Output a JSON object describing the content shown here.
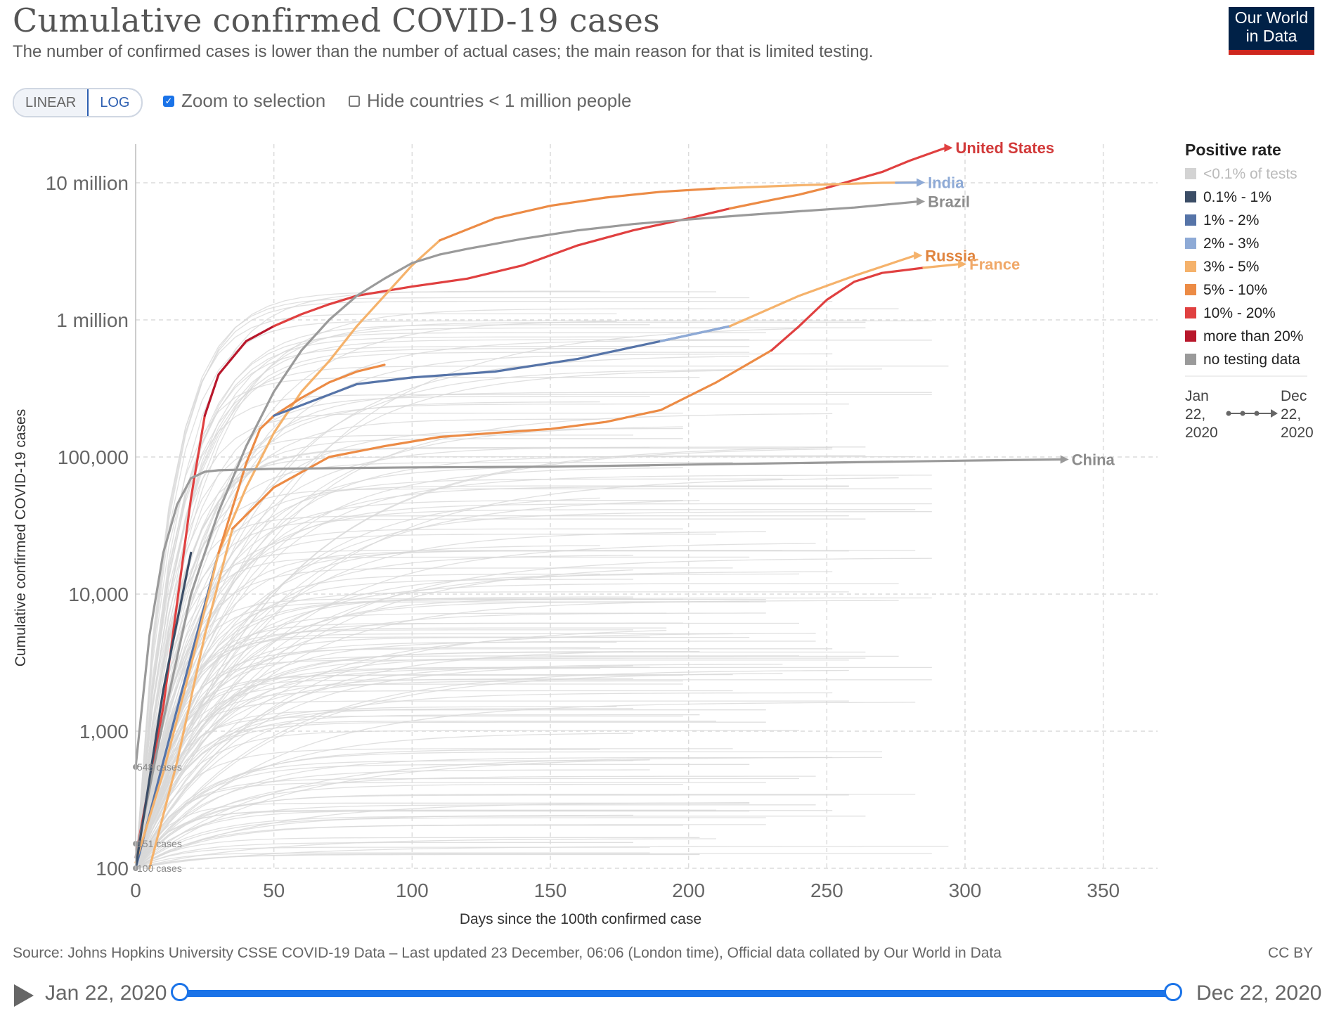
{
  "header": {
    "title": "Cumulative confirmed COVID-19 cases",
    "subtitle": "The number of confirmed cases is lower than the number of actual cases; the main reason for that is limited testing.",
    "logo_line1": "Our World",
    "logo_line2": "in Data"
  },
  "controls": {
    "linear_label": "LINEAR",
    "log_label": "LOG",
    "active_scale": "LOG",
    "zoom_label": "Zoom to selection",
    "zoom_checked": true,
    "hide_label": "Hide countries < 1 million people",
    "hide_checked": false
  },
  "footer": {
    "source": "Source: Johns Hopkins University CSSE COVID-19 Data – Last updated 23 December, 06:06 (London time), Official data collated by Our World in Data",
    "license": "CC BY"
  },
  "timeline": {
    "start": "Jan 22, 2020",
    "end": "Dec 22, 2020"
  },
  "chart_data": {
    "type": "line",
    "title": "Cumulative confirmed COVID-19 cases",
    "xlabel": "Days since the 100th confirmed case",
    "ylabel": "Cumulative confirmed COVID-19 cases",
    "scale": "log",
    "grid": true,
    "xlim": [
      0,
      370
    ],
    "ylim": [
      100,
      20000000
    ],
    "x_ticks": [
      0,
      50,
      100,
      150,
      200,
      250,
      300,
      350
    ],
    "x_tick_labels": [
      "0",
      "50",
      "100",
      "150",
      "200",
      "250",
      "300",
      "350"
    ],
    "y_ticks": [
      100,
      1000,
      10000,
      100000,
      1000000,
      10000000
    ],
    "y_tick_labels": [
      "100",
      "1,000",
      "10,000",
      "100,000",
      "1 million",
      "10 million"
    ],
    "start_annotations": [
      {
        "label": "548 cases",
        "y": 548
      },
      {
        "label": "151 cases",
        "y": 151
      },
      {
        "label": "100 cases",
        "y": 100
      }
    ],
    "legend": {
      "title": "Positive rate",
      "placement": "right",
      "items": [
        {
          "label": "<0.1% of tests",
          "color": "#d3d3d3"
        },
        {
          "label": "0.1% - 1%",
          "color": "#3b4d66"
        },
        {
          "label": "1% - 2%",
          "color": "#5674a8"
        },
        {
          "label": "2% - 3%",
          "color": "#8eaad6"
        },
        {
          "label": "3% - 5%",
          "color": "#f5b26b"
        },
        {
          "label": "5% - 10%",
          "color": "#ec8b45"
        },
        {
          "label": "10% - 20%",
          "color": "#e04040"
        },
        {
          "label": "more than 20%",
          "color": "#b8172b"
        },
        {
          "label": "no testing data",
          "color": "#9a9a9a"
        }
      ],
      "range_start_label": [
        "Jan",
        "22,",
        "2020"
      ],
      "range_end_label": [
        "Dec",
        "22,",
        "2020"
      ]
    },
    "series": [
      {
        "name": "United States",
        "label_color": "#d23a3a",
        "segments": [
          {
            "color": "#e04040",
            "x": [
              0,
              10,
              20,
              25
            ],
            "y": [
              120,
              1500,
              50000,
              200000
            ]
          },
          {
            "color": "#b8172b",
            "x": [
              25,
              30,
              40,
              50
            ],
            "y": [
              200000,
              400000,
              700000,
              900000
            ]
          },
          {
            "color": "#e04040",
            "x": [
              50,
              60,
              70,
              80,
              100,
              120,
              140,
              160,
              180,
              200,
              215
            ],
            "y": [
              900000,
              1100000,
              1300000,
              1500000,
              1750000,
              2000000,
              2500000,
              3500000,
              4500000,
              5500000,
              6500000
            ]
          },
          {
            "color": "#ec8b45",
            "x": [
              215,
              230,
              240,
              250
            ],
            "y": [
              6500000,
              7500000,
              8200000,
              9200000
            ]
          },
          {
            "color": "#e04040",
            "x": [
              250,
              260,
              270,
              280,
              293
            ],
            "y": [
              9200000,
              10500000,
              12000000,
              14500000,
              18000000
            ]
          }
        ]
      },
      {
        "name": "India",
        "label_color": "#8eaad6",
        "segments": [
          {
            "color": "#5674a8",
            "x": [
              0,
              10,
              20,
              30
            ],
            "y": [
              100,
              600,
              3500,
              20000
            ]
          },
          {
            "color": "#f5b26b",
            "x": [
              30,
              40,
              50,
              60,
              70,
              80,
              90,
              100,
              110
            ],
            "y": [
              20000,
              60000,
              150000,
              300000,
              500000,
              900000,
              1500000,
              2500000,
              3800000
            ]
          },
          {
            "color": "#ec8b45",
            "x": [
              110,
              130,
              150,
              170,
              190,
              210
            ],
            "y": [
              3800000,
              5500000,
              6800000,
              7800000,
              8600000,
              9100000
            ]
          },
          {
            "color": "#f5b26b",
            "x": [
              210,
              240,
              270,
              283
            ],
            "y": [
              9100000,
              9600000,
              10000000,
              10050000
            ]
          },
          {
            "color": "#8eaad6",
            "x": [
              275,
              283
            ],
            "y": [
              10000000,
              10050000
            ]
          }
        ]
      },
      {
        "name": "Brazil",
        "label_color": "#8c8c8c",
        "segments": [
          {
            "color": "#9a9a9a",
            "x": [
              0,
              10,
              20,
              30,
              40,
              50,
              60,
              70,
              80,
              90,
              100,
              110,
              120,
              140,
              160,
              180,
              200,
              220,
              240,
              260,
              283
            ],
            "y": [
              120,
              1200,
              10000,
              40000,
              120000,
              300000,
              600000,
              1000000,
              1500000,
              2000000,
              2600000,
              3000000,
              3300000,
              3900000,
              4500000,
              5000000,
              5400000,
              5800000,
              6200000,
              6600000,
              7300000
            ]
          }
        ]
      },
      {
        "name": "Russia",
        "label_color": "#e0843e",
        "segments": [
          {
            "color": "#f5b26b",
            "x": [
              0,
              10,
              20,
              30
            ],
            "y": [
              110,
              500,
              3000,
              20000
            ]
          },
          {
            "color": "#ec8b45",
            "x": [
              30,
              40,
              45,
              50,
              60,
              70,
              80,
              90
            ],
            "y": [
              20000,
              90000,
              160000,
              200000,
              270000,
              350000,
              420000,
              470000
            ]
          },
          {
            "color": "#3b4d66",
            "x": [
              0,
              10,
              20
            ],
            "y": [
              100,
              2000,
              20000
            ]
          },
          {
            "color": "#5674a8",
            "x": [
              50,
              80,
              100,
              130,
              160,
              190,
              215
            ],
            "y": [
              200000,
              340000,
              380000,
              420000,
              520000,
              700000,
              900000
            ]
          },
          {
            "color": "#8eaad6",
            "x": [
              190,
              215
            ],
            "y": [
              700000,
              900000
            ]
          },
          {
            "color": "#f5b26b",
            "x": [
              215,
              240,
              260,
              282
            ],
            "y": [
              900000,
              1500000,
              2100000,
              2950000
            ]
          }
        ]
      },
      {
        "name": "France",
        "label_color": "#f0a868",
        "segments": [
          {
            "color": "#f5b26b",
            "x": [
              5,
              15,
              25,
              35
            ],
            "y": [
              100,
              600,
              5000,
              30000
            ]
          },
          {
            "color": "#ec8b45",
            "x": [
              35,
              50,
              70,
              90,
              110,
              130,
              150,
              170,
              190,
              210,
              230
            ],
            "y": [
              30000,
              60000,
              100000,
              120000,
              140000,
              150000,
              160000,
              180000,
              220000,
              350000,
              600000
            ]
          },
          {
            "color": "#e04040",
            "x": [
              230,
              240,
              250,
              260,
              270,
              285
            ],
            "y": [
              600000,
              900000,
              1400000,
              1900000,
              2200000,
              2400000
            ]
          },
          {
            "color": "#f5b26b",
            "x": [
              285,
              298
            ],
            "y": [
              2400000,
              2550000
            ]
          }
        ]
      },
      {
        "name": "China",
        "label_color": "#8c8c8c",
        "segments": [
          {
            "color": "#9a9a9a",
            "x": [
              0,
              5,
              10,
              15,
              20,
              25,
              30,
              50,
              100,
              150,
              200,
              250,
              300,
              335
            ],
            "y": [
              548,
              5000,
              20000,
              45000,
              70000,
              78000,
              80000,
              82000,
              84000,
              85000,
              88000,
              91000,
              94000,
              96000
            ]
          }
        ]
      }
    ]
  }
}
